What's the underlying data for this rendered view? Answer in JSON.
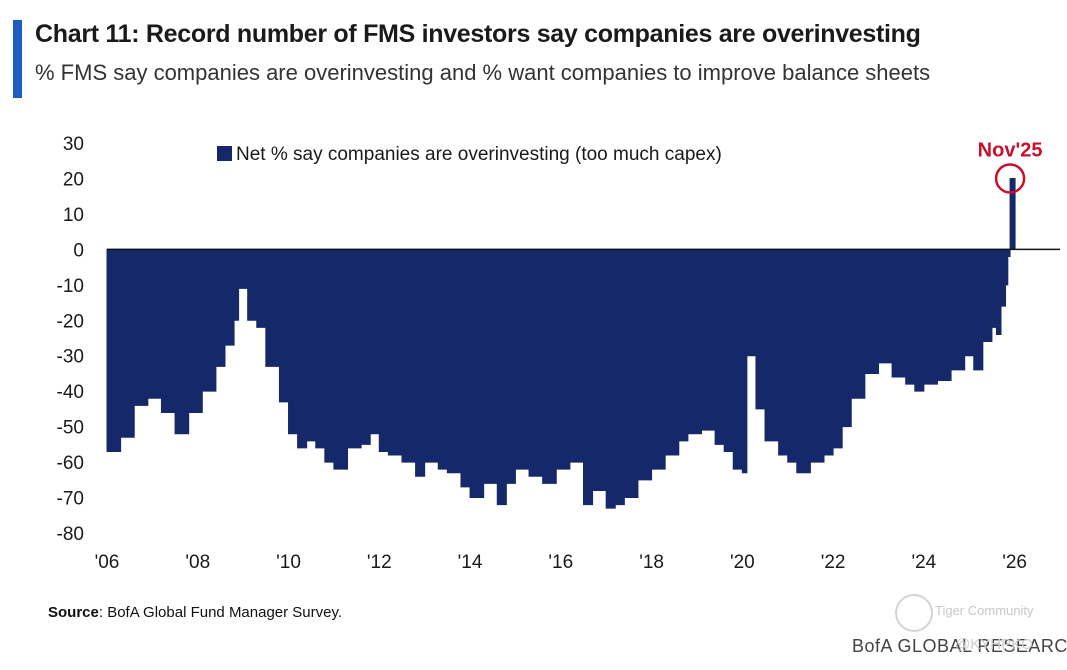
{
  "header": {
    "title": "Chart 11: Record number of FMS investors say companies are overinvesting",
    "subtitle": "% FMS say companies are overinvesting and % want companies to improve balance sheets",
    "accent_color": "#1f5cc2"
  },
  "footer": {
    "source_label": "Source",
    "source_text": ": BofA Global Fund Manager Survey.",
    "brand": "BofA GLOBAL RESEARCH",
    "watermark_text": "Tiger Community",
    "watermark_handle": "@KYHPKO"
  },
  "chart_data": {
    "type": "area",
    "title": "Chart 11: Record number of FMS investors say companies are overinvesting",
    "subtitle": "% FMS say companies are overinvesting and % want companies to improve balance sheets",
    "xlabel": "",
    "ylabel": "",
    "ylim": [
      -80,
      30
    ],
    "yticks": [
      30,
      20,
      10,
      0,
      -10,
      -20,
      -30,
      -40,
      -50,
      -60,
      -70,
      -80
    ],
    "xlim": [
      2006,
      2027
    ],
    "xticks": [
      {
        "value": 2006,
        "label": "'06"
      },
      {
        "value": 2008,
        "label": "'08"
      },
      {
        "value": 2010,
        "label": "'10"
      },
      {
        "value": 2012,
        "label": "'12"
      },
      {
        "value": 2014,
        "label": "'14"
      },
      {
        "value": 2016,
        "label": "'16"
      },
      {
        "value": 2018,
        "label": "'18"
      },
      {
        "value": 2020,
        "label": "'20"
      },
      {
        "value": 2022,
        "label": "'22"
      },
      {
        "value": 2024,
        "label": "'24"
      },
      {
        "value": 2026,
        "label": "'26"
      }
    ],
    "grid": false,
    "legend": {
      "position": "top-center",
      "entries": [
        "Net % say companies are overinvesting (too much capex)"
      ]
    },
    "series": [
      {
        "name": "Net % say companies are overinvesting (too much capex)",
        "color": "#14286a",
        "points": [
          [
            2006.0,
            -57
          ],
          [
            2006.3,
            -53
          ],
          [
            2006.6,
            -44
          ],
          [
            2006.9,
            -42
          ],
          [
            2007.2,
            -46
          ],
          [
            2007.5,
            -52
          ],
          [
            2007.8,
            -46
          ],
          [
            2008.1,
            -40
          ],
          [
            2008.4,
            -33
          ],
          [
            2008.6,
            -27
          ],
          [
            2008.8,
            -20
          ],
          [
            2008.9,
            -11
          ],
          [
            2009.1,
            -20
          ],
          [
            2009.3,
            -22
          ],
          [
            2009.5,
            -33
          ],
          [
            2009.8,
            -43
          ],
          [
            2010.0,
            -52
          ],
          [
            2010.2,
            -56
          ],
          [
            2010.4,
            -54
          ],
          [
            2010.6,
            -56
          ],
          [
            2010.8,
            -60
          ],
          [
            2011.0,
            -62
          ],
          [
            2011.3,
            -56
          ],
          [
            2011.6,
            -55
          ],
          [
            2011.8,
            -52
          ],
          [
            2012.0,
            -57
          ],
          [
            2012.2,
            -58
          ],
          [
            2012.5,
            -60
          ],
          [
            2012.8,
            -64
          ],
          [
            2013.0,
            -60
          ],
          [
            2013.3,
            -62
          ],
          [
            2013.5,
            -63
          ],
          [
            2013.8,
            -67
          ],
          [
            2014.0,
            -70
          ],
          [
            2014.3,
            -66
          ],
          [
            2014.6,
            -72
          ],
          [
            2014.8,
            -66
          ],
          [
            2015.0,
            -62
          ],
          [
            2015.3,
            -64
          ],
          [
            2015.6,
            -66
          ],
          [
            2015.9,
            -62
          ],
          [
            2016.2,
            -60
          ],
          [
            2016.5,
            -72
          ],
          [
            2016.7,
            -68
          ],
          [
            2017.0,
            -73
          ],
          [
            2017.2,
            -72
          ],
          [
            2017.4,
            -70
          ],
          [
            2017.7,
            -65
          ],
          [
            2018.0,
            -62
          ],
          [
            2018.3,
            -58
          ],
          [
            2018.6,
            -54
          ],
          [
            2018.8,
            -52
          ],
          [
            2019.1,
            -51
          ],
          [
            2019.4,
            -55
          ],
          [
            2019.6,
            -57
          ],
          [
            2019.8,
            -62
          ],
          [
            2020.0,
            -63
          ],
          [
            2020.1,
            -30
          ],
          [
            2020.3,
            -45
          ],
          [
            2020.5,
            -54
          ],
          [
            2020.8,
            -58
          ],
          [
            2021.0,
            -60
          ],
          [
            2021.2,
            -63
          ],
          [
            2021.5,
            -60
          ],
          [
            2021.8,
            -58
          ],
          [
            2022.0,
            -56
          ],
          [
            2022.2,
            -50
          ],
          [
            2022.4,
            -42
          ],
          [
            2022.7,
            -35
          ],
          [
            2023.0,
            -32
          ],
          [
            2023.3,
            -36
          ],
          [
            2023.6,
            -38
          ],
          [
            2023.8,
            -40
          ],
          [
            2024.0,
            -38
          ],
          [
            2024.3,
            -37
          ],
          [
            2024.6,
            -34
          ],
          [
            2024.9,
            -30
          ],
          [
            2025.1,
            -34
          ],
          [
            2025.3,
            -26
          ],
          [
            2025.5,
            -22
          ],
          [
            2025.6,
            -24
          ],
          [
            2025.7,
            -16
          ],
          [
            2025.8,
            -10
          ],
          [
            2025.85,
            -2
          ],
          [
            2025.9,
            20
          ]
        ]
      }
    ],
    "annotations": [
      {
        "text": "Nov'25",
        "x": 2025.9,
        "y": 20,
        "color": "#c8102e",
        "style": "circle"
      }
    ]
  }
}
